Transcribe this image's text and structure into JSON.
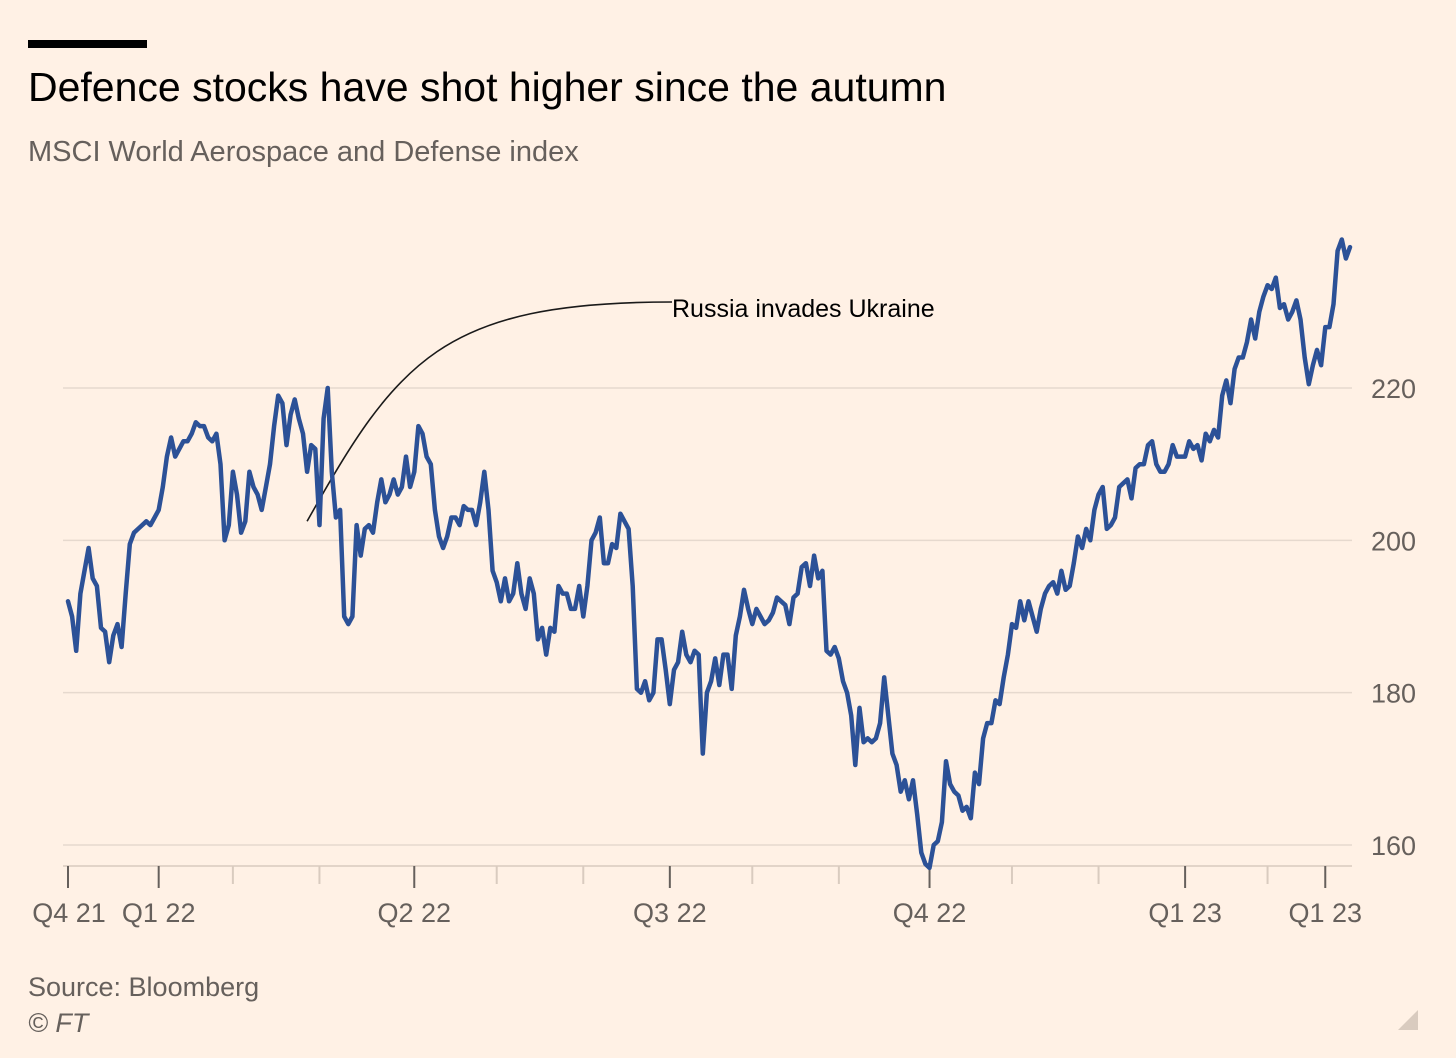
{
  "header": {
    "title": "Defence stocks have shot higher since the autumn",
    "subtitle": "MSCI World Aerospace and Defense index"
  },
  "footer": {
    "source": "Source: Bloomberg",
    "credit": "© FT"
  },
  "chart_data": {
    "type": "line",
    "title": "Defence stocks have shot higher since the autumn",
    "subtitle": "MSCI World Aerospace and Defense index",
    "xlabel": "",
    "ylabel": "",
    "ylim": [
      157,
      240
    ],
    "yticks": [
      160,
      180,
      200,
      220
    ],
    "y_axis_position": "right",
    "grid": "horizontal",
    "line_color": "#2c5197",
    "xticks": [
      {
        "label": "Q4 21",
        "at": 0
      },
      {
        "label": "Q1 22",
        "at": 22
      },
      {
        "label": "Q2 22",
        "at": 84
      },
      {
        "label": "Q3 22",
        "at": 146
      },
      {
        "label": "Q4 22",
        "at": 209
      },
      {
        "label": "Q1 23",
        "at": 271
      },
      {
        "label": "Q1 23",
        "at": 305
      }
    ],
    "minor_ticks": [
      40,
      61,
      104,
      125,
      166,
      187,
      229,
      250,
      291
    ],
    "annotation": {
      "text": "Russia invades Ukraine",
      "at": [
        58,
        202.5
      ]
    },
    "series": [
      {
        "values": [
          192,
          190,
          185.5,
          193,
          196,
          199,
          195,
          194,
          188.5,
          188,
          184,
          187.5,
          189,
          186,
          193,
          199.5,
          201,
          201.5,
          202,
          202.5,
          202,
          203,
          204,
          207,
          211,
          213.5,
          211,
          212,
          213,
          213,
          214,
          215.5,
          215,
          215,
          213.5,
          213,
          214,
          210,
          200,
          202,
          209,
          206,
          201,
          202.5,
          209,
          207,
          206,
          204,
          207,
          210,
          215,
          219,
          218,
          212.5,
          216.5,
          218.5,
          216,
          214,
          209,
          212.5,
          212,
          202,
          216,
          220,
          209,
          203,
          204,
          190,
          189,
          190,
          202,
          198,
          201.5,
          202,
          201,
          205,
          208,
          205,
          206,
          208,
          206,
          207,
          211,
          207,
          209,
          215,
          214,
          211,
          210,
          204,
          200.5,
          199,
          200.5,
          203,
          203,
          202,
          204.5,
          204,
          204,
          202,
          205,
          209,
          204,
          196,
          194.5,
          192,
          195,
          192,
          193,
          197,
          193,
          191,
          195,
          193,
          187,
          188.5,
          185,
          188.5,
          188,
          194,
          193,
          193,
          191,
          191,
          194,
          190,
          194,
          200,
          201,
          203,
          197,
          197,
          199.5,
          199,
          203.5,
          202.5,
          201.5,
          194,
          180.5,
          180,
          181.5,
          179,
          180,
          187,
          187,
          183,
          178.5,
          183,
          184,
          188,
          185,
          184,
          185.5,
          185,
          172,
          180,
          181.5,
          184.5,
          181,
          185,
          185,
          180.5,
          187.5,
          190,
          193.5,
          191,
          189,
          191,
          190,
          189,
          189.5,
          190.5,
          192.5,
          192,
          191.5,
          189,
          192.5,
          193,
          196.5,
          197,
          194,
          198,
          195,
          196,
          185.5,
          185,
          186,
          184.5,
          181.5,
          180,
          177,
          170.5,
          178,
          173.5,
          174,
          173.5,
          174,
          176,
          182,
          177,
          172,
          170.5,
          167,
          168.5,
          166,
          168.5,
          164,
          159,
          157.5,
          157,
          160,
          160.5,
          163,
          171,
          168,
          167,
          166.5,
          164.5,
          165,
          163.5,
          169.5,
          168,
          174,
          176,
          176,
          179,
          178.5,
          182,
          185,
          189,
          188.5,
          192,
          189.5,
          192,
          190,
          188,
          191,
          193,
          194,
          194.5,
          193,
          196,
          193.5,
          194,
          197,
          200.5,
          199,
          201.5,
          200,
          204,
          206,
          207,
          201.5,
          202,
          203,
          207,
          207.5,
          208,
          205.5,
          209.5,
          210,
          210,
          212.5,
          213,
          210,
          209,
          209,
          210,
          212.5,
          211,
          211,
          211,
          213,
          212,
          212.5,
          210.5,
          214,
          213,
          214.5,
          213.5,
          219,
          221,
          218,
          222.5,
          224,
          224,
          226,
          229,
          226.5,
          230,
          232,
          233.5,
          233,
          234.5,
          230.5,
          231,
          229,
          230,
          231.5,
          229,
          224,
          220.5,
          223,
          225,
          223,
          228,
          228,
          231,
          238,
          239.5,
          237,
          238.5
        ]
      }
    ]
  }
}
